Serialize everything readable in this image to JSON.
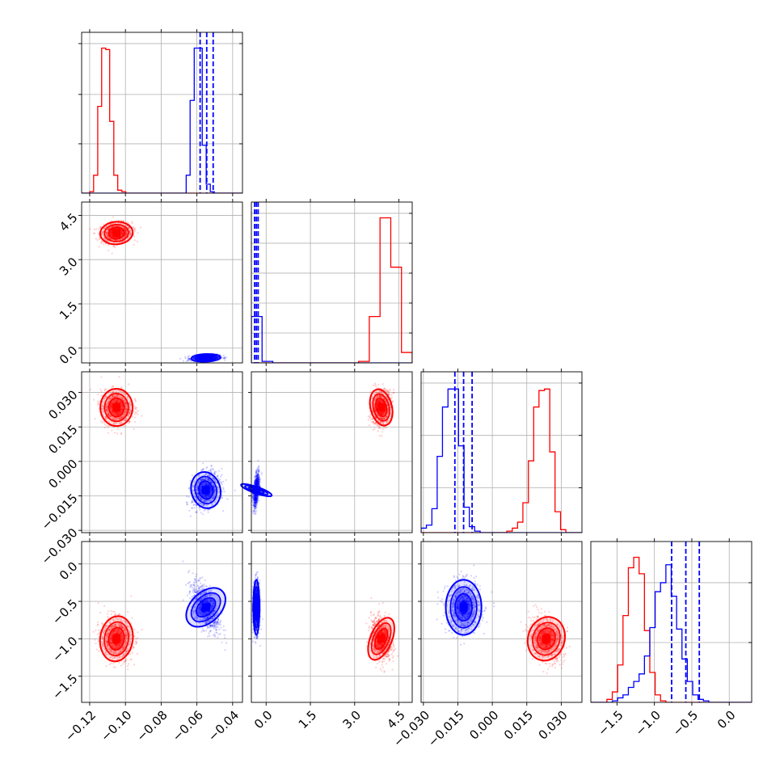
{
  "chart_data": {
    "type": "corner",
    "title": "",
    "parameters": 4,
    "colors": {
      "red": "#ff0000",
      "blue": "#0000ff",
      "grid": "#b0b0b0"
    },
    "axis_ranges": [
      [
        -0.1245,
        -0.0345
      ],
      [
        -0.5,
        4.95
      ],
      [
        -0.031,
        0.039
      ],
      [
        -1.85,
        0.3
      ]
    ],
    "ticks": [
      {
        "values": [
          -0.12,
          -0.1,
          -0.08,
          -0.06,
          -0.04
        ],
        "labels": [
          "−0.12",
          "−0.10",
          "−0.08",
          "−0.06",
          "−0.04"
        ]
      },
      {
        "values": [
          0.0,
          1.5,
          3.0,
          4.5
        ],
        "labels": [
          "0.0",
          "1.5",
          "3.0",
          "4.5"
        ]
      },
      {
        "values": [
          -0.03,
          -0.015,
          0.0,
          0.015,
          0.03
        ],
        "labels": [
          "−0.030",
          "−0.015",
          "0.000",
          "0.015",
          "0.030"
        ]
      },
      {
        "values": [
          -1.5,
          -1.0,
          -0.5,
          0.0
        ],
        "labels": [
          "−1.5",
          "−1.0",
          "−0.5",
          "0.0"
        ]
      }
    ],
    "hist_yticks": [
      [
        0.33,
        0.66,
        1.0
      ],
      [
        0.2,
        0.4,
        0.6,
        0.8,
        1.0
      ],
      [
        0.3,
        0.65,
        1.0
      ],
      [
        0.4,
        0.8
      ]
    ],
    "series": [
      {
        "color": "#ff0000",
        "means": [
          -0.105,
          3.9,
          0.0235,
          -1.0
        ],
        "sigmas": [
          0.0043,
          0.17,
          0.0037,
          0.14
        ],
        "correlations": {
          "0-1": 0.1,
          "0-2": 0.0,
          "0-3": -0.1,
          "1-2": 0.15,
          "1-3": -0.2,
          "2-3": -0.25
        },
        "quantile_lines": false
      },
      {
        "color": "#0000ff",
        "means": [
          -0.055,
          -0.33,
          -0.0125,
          -0.58
        ],
        "sigmas": [
          0.0038,
          0.05,
          0.0037,
          0.17
        ],
        "correlations": {
          "0-1": 0.2,
          "0-2": 0.2,
          "0-3": -0.55,
          "1-2": 0.5,
          "1-3": 0.0,
          "2-3": 0.0
        },
        "quantile_lines": true
      }
    ],
    "histograms": {
      "p0": {
        "edges": [
          -0.1245,
          -0.1223,
          -0.12,
          -0.1178,
          -0.1155,
          -0.1133,
          -0.111,
          -0.1088,
          -0.1065,
          -0.1043,
          -0.102,
          -0.0998,
          -0.0975,
          -0.0953,
          -0.093,
          -0.0908,
          -0.0885,
          -0.0863,
          -0.084,
          -0.0818,
          -0.0795,
          -0.0773,
          -0.075,
          -0.0728,
          -0.0705,
          -0.0683,
          -0.066,
          -0.0638,
          -0.0615,
          -0.0593,
          -0.057,
          -0.0548,
          -0.0525,
          -0.0503,
          -0.048,
          -0.0458,
          -0.0435,
          -0.0413,
          -0.039,
          -0.0368,
          -0.0345
        ],
        "red": [
          0,
          0,
          0.01,
          0.12,
          0.58,
          0.97,
          0.96,
          0.48,
          0.12,
          0.02,
          0.01,
          0,
          0,
          0,
          0,
          0,
          0,
          0,
          0,
          0,
          0,
          0,
          0,
          0,
          0,
          0,
          0,
          0,
          0,
          0,
          0,
          0,
          0,
          0,
          0,
          0,
          0,
          0,
          0,
          0
        ],
        "blue": [
          0,
          0,
          0,
          0,
          0,
          0,
          0,
          0,
          0,
          0,
          0,
          0,
          0,
          0,
          0,
          0,
          0,
          0,
          0,
          0,
          0,
          0,
          0,
          0,
          0,
          0,
          0.12,
          0.62,
          0.97,
          0.97,
          0.32,
          0.06,
          0.01,
          0,
          0,
          0,
          0,
          0,
          0,
          0
        ],
        "quantiles": [
          -0.0582,
          -0.0545,
          -0.0509
        ]
      },
      "p1": {
        "edges": [
          -0.5,
          -0.1367,
          0.2267,
          0.59,
          0.9533,
          1.3167,
          1.68,
          2.0433,
          2.4067,
          2.77,
          3.1333,
          3.4967,
          3.86,
          4.2233,
          4.5867,
          4.95
        ],
        "red": [
          0,
          0,
          0,
          0,
          0,
          0,
          0,
          0,
          0,
          0,
          0.01,
          0.31,
          0.97,
          0.64,
          0.07
        ],
        "blue": [
          0.31,
          0.01,
          0,
          0,
          0,
          0,
          0,
          0,
          0,
          0,
          0,
          0,
          0,
          0,
          0
        ],
        "quantiles": [
          -0.39,
          -0.33,
          -0.27
        ]
      },
      "p2": {
        "edges": [
          -0.031,
          -0.0287,
          -0.0263,
          -0.024,
          -0.0217,
          -0.0193,
          -0.017,
          -0.0147,
          -0.0123,
          -0.01,
          -0.0077,
          -0.0053,
          -0.003,
          -0.0007,
          0.0017,
          0.004,
          0.0063,
          0.0087,
          0.011,
          0.0133,
          0.0157,
          0.018,
          0.0203,
          0.0227,
          0.025,
          0.0273,
          0.0297,
          0.032,
          0.0343,
          0.0367,
          0.039
        ],
        "red": [
          0,
          0,
          0,
          0,
          0,
          0,
          0,
          0,
          0,
          0,
          0,
          0,
          0,
          0,
          0,
          0,
          0.01,
          0.03,
          0.07,
          0.2,
          0.48,
          0.84,
          0.95,
          0.96,
          0.54,
          0.14,
          0.02,
          0,
          0,
          0
        ],
        "blue": [
          0.03,
          0.05,
          0.16,
          0.51,
          0.84,
          0.96,
          0.96,
          0.58,
          0.17,
          0.04,
          0.01,
          0,
          0,
          0,
          0,
          0,
          0,
          0,
          0,
          0,
          0,
          0,
          0,
          0,
          0,
          0,
          0,
          0,
          0,
          0
        ],
        "quantiles": [
          -0.0163,
          -0.0125,
          -0.0088
        ]
      },
      "p3": {
        "edges": [
          -1.85,
          -1.7783,
          -1.7067,
          -1.635,
          -1.5633,
          -1.4917,
          -1.42,
          -1.3483,
          -1.2767,
          -1.205,
          -1.1333,
          -1.0617,
          -0.99,
          -0.9183,
          -0.8467,
          -0.775,
          -0.7033,
          -0.6317,
          -0.56,
          -0.4883,
          -0.4167,
          -0.345,
          -0.2733,
          -0.2017,
          -0.13,
          -0.0583,
          0.0133,
          0.085,
          0.1567,
          0.2283,
          0.3
        ],
        "red": [
          0,
          0,
          0,
          0.02,
          0.07,
          0.25,
          0.58,
          0.9,
          0.97,
          0.86,
          0.48,
          0.2,
          0.05,
          0.01,
          0,
          0,
          0,
          0,
          0,
          0,
          0,
          0,
          0,
          0,
          0,
          0,
          0,
          0,
          0,
          0
        ],
        "blue": [
          0,
          0,
          0,
          0,
          0.01,
          0.03,
          0.05,
          0.1,
          0.14,
          0.19,
          0.31,
          0.5,
          0.74,
          0.8,
          0.92,
          0.71,
          0.49,
          0.29,
          0.14,
          0.05,
          0.02,
          0.01,
          0,
          0,
          0,
          0,
          0,
          0,
          0,
          0
        ],
        "quantiles": [
          -0.77,
          -0.58,
          -0.4
        ]
      }
    }
  }
}
